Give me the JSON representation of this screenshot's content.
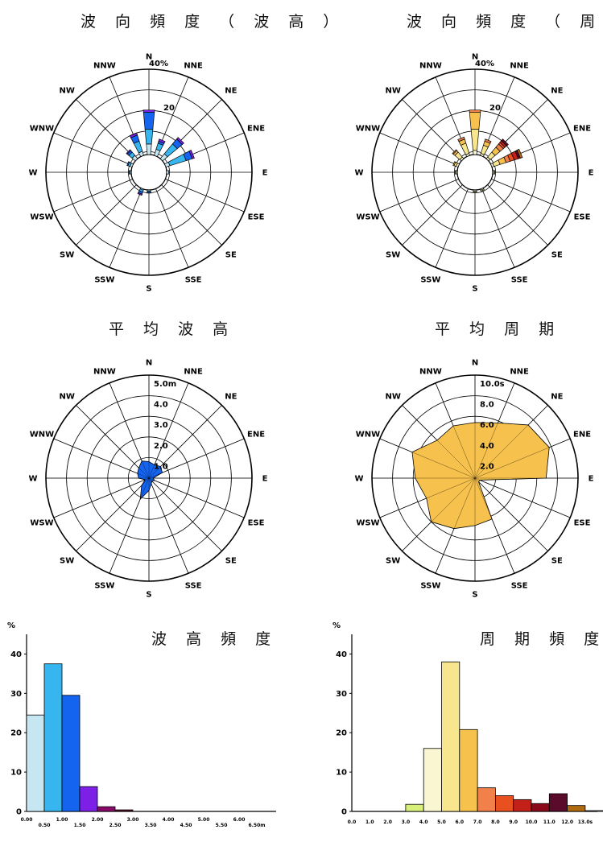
{
  "titles": {
    "rose_height": "波 向 頻 度 （ 波 高 ）",
    "rose_period": "波 向 頻 度 （ 周 期 ）",
    "mean_height": "平 均 波 高",
    "mean_period": "平 均 周 期",
    "hist_height": "波 高 頻 度",
    "hist_period": "周 期 頻 度"
  },
  "directions": [
    "N",
    "NNE",
    "NE",
    "ENE",
    "E",
    "ESE",
    "SE",
    "SSE",
    "S",
    "SSW",
    "SW",
    "WSW",
    "W",
    "WNW",
    "NW",
    "NNW"
  ],
  "chart_data": [
    {
      "type": "rose",
      "name": "rose_height",
      "title": "波 向 頻 度 （ 波 高 ）",
      "categories": [
        "N",
        "NNE",
        "NE",
        "ENE",
        "E",
        "ESE",
        "SE",
        "SSE",
        "S",
        "SSW",
        "SW",
        "WSW",
        "W",
        "WNW",
        "NW",
        "NNW"
      ],
      "radial_max": 40,
      "radial_max_label": "40%",
      "radial_tick_label": "20",
      "class_colors": [
        "#c6e6f2",
        "#37b5ee",
        "#1464f0",
        "#7d1fe6",
        "#8a0a6a"
      ],
      "stacks": [
        [
          5,
          7,
          8,
          1
        ],
        [
          3,
          3,
          1,
          1
        ],
        [
          3,
          6,
          3,
          1
        ],
        [
          2,
          8,
          3,
          1
        ],
        [
          1,
          0,
          0,
          0
        ],
        [
          0,
          0,
          0,
          0
        ],
        [
          0,
          0,
          0,
          0
        ],
        [
          0,
          0,
          0,
          0
        ],
        [
          0.5,
          0.5,
          0.5,
          0
        ],
        [
          0.5,
          1,
          1,
          0.5
        ],
        [
          0,
          0,
          0,
          0
        ],
        [
          0,
          0,
          0,
          0
        ],
        [
          0.5,
          0.5,
          0,
          0
        ],
        [
          1,
          1,
          0.5,
          0
        ],
        [
          2,
          2,
          1,
          0.5
        ],
        [
          2,
          5,
          3,
          1
        ]
      ]
    },
    {
      "type": "rose",
      "name": "rose_period",
      "title": "波 向 頻 度 （ 周 期 ）",
      "categories": [
        "N",
        "NNE",
        "NE",
        "ENE",
        "E",
        "ESE",
        "SE",
        "SSE",
        "S",
        "SSW",
        "SW",
        "WSW",
        "W",
        "WNW",
        "NW",
        "NNW"
      ],
      "radial_max": 40,
      "radial_max_label": "40%",
      "radial_tick_label": "20",
      "class_colors": [
        "#fbf6d2",
        "#f8e68e",
        "#f6c14c",
        "#f2804a",
        "#e85020",
        "#c4201a",
        "#5a0a2a",
        "#b06a10"
      ],
      "stacks": [
        [
          2,
          10,
          8,
          1
        ],
        [
          1,
          4,
          2,
          1
        ],
        [
          1,
          3,
          3,
          2,
          1,
          1,
          1
        ],
        [
          1,
          3,
          3,
          2,
          2,
          2,
          1,
          1
        ],
        [
          0.5,
          0.5
        ],
        [
          0,
          0
        ],
        [
          0,
          0
        ],
        [
          0.5,
          0.5
        ],
        [
          0.5,
          0.5
        ],
        [
          0,
          0
        ],
        [
          0,
          0
        ],
        [
          0,
          0
        ],
        [
          0.5,
          0.5
        ],
        [
          1,
          1,
          0.5
        ],
        [
          1,
          3,
          1,
          0.5
        ],
        [
          1,
          5,
          2,
          1
        ]
      ]
    },
    {
      "type": "radar",
      "name": "mean_height",
      "title": "平 均 波 高",
      "categories": [
        "N",
        "NNE",
        "NE",
        "ENE",
        "E",
        "ESE",
        "SE",
        "SSE",
        "S",
        "SSW",
        "SW",
        "WSW",
        "W",
        "WNW",
        "NW",
        "NNW"
      ],
      "radial_max": 5.0,
      "radial_ticks": [
        "5.0m",
        "4.0",
        "3.0",
        "2.0",
        "1.0"
      ],
      "values": [
        0.8,
        0.7,
        0.8,
        0.7,
        0.2,
        0.3,
        0.2,
        0.3,
        0.6,
        1.1,
        0.5,
        0.2,
        0.5,
        0.6,
        0.7,
        0.9
      ],
      "color": "#1464f0"
    },
    {
      "type": "radar",
      "name": "mean_period",
      "title": "平 均 周 期",
      "categories": [
        "N",
        "NNE",
        "NE",
        "ENE",
        "E",
        "ESE",
        "SE",
        "SSE",
        "S",
        "SSW",
        "SW",
        "WSW",
        "W",
        "WNW",
        "NW",
        "NNW"
      ],
      "radial_max": 10.0,
      "radial_ticks": [
        "10.0s",
        "8.0",
        "6.0",
        "4.0",
        "2.0"
      ],
      "values": [
        5.4,
        5.8,
        7.3,
        7.8,
        6.9,
        0.5,
        0.5,
        4.3,
        4.6,
        5.3,
        6.0,
        5.1,
        5.8,
        6.6,
        5.2,
        5.5
      ],
      "color": "#f6c14c"
    },
    {
      "type": "bar",
      "name": "hist_height",
      "title": "波 高 頻 度",
      "ylabel": "%",
      "ylim": [
        0,
        45
      ],
      "yticks": [
        0,
        10,
        20,
        30,
        40
      ],
      "xticks_upper": [
        "0.00",
        "1.00",
        "2.00",
        "3.00",
        "4.00",
        "5.00",
        "6.00"
      ],
      "xticks_lower": [
        "0.50",
        "1.50",
        "2.50",
        "3.50",
        "4.50",
        "5.50",
        "6.50m"
      ],
      "values": [
        24.5,
        37.5,
        29.5,
        6.3,
        1.2,
        0.4,
        0,
        0,
        0,
        0,
        0,
        0,
        0
      ],
      "colors": [
        "#c6e6f2",
        "#37b5ee",
        "#1464f0",
        "#7d1fe6",
        "#8a0a6a",
        "#5a0a2a",
        "#888",
        "#888",
        "#888",
        "#888",
        "#888",
        "#888",
        "#888"
      ]
    },
    {
      "type": "bar",
      "name": "hist_period",
      "title": "周 期 頻 度",
      "ylabel": "%",
      "ylim": [
        0,
        45
      ],
      "yticks": [
        0,
        10,
        20,
        30,
        40
      ],
      "xticks": [
        "0.0",
        "1.0",
        "2.0",
        "3.0",
        "4.0",
        "5.0",
        "6.0",
        "7.0",
        "8.0",
        "9.0",
        "10.0",
        "11.0",
        "12.0",
        "13.0s"
      ],
      "values": [
        0,
        0,
        0,
        1.8,
        16.0,
        38.0,
        20.8,
        6.0,
        4.0,
        3.0,
        2.0,
        4.5,
        1.5,
        0.2
      ],
      "colors": [
        "#ffffff",
        "#ffffff",
        "#ffffff",
        "#d8f07a",
        "#fbf6d2",
        "#f8e68e",
        "#f6c14c",
        "#f2804a",
        "#e85020",
        "#c4201a",
        "#8a0a1a",
        "#5a0a2a",
        "#b06a10",
        "#777"
      ]
    }
  ]
}
